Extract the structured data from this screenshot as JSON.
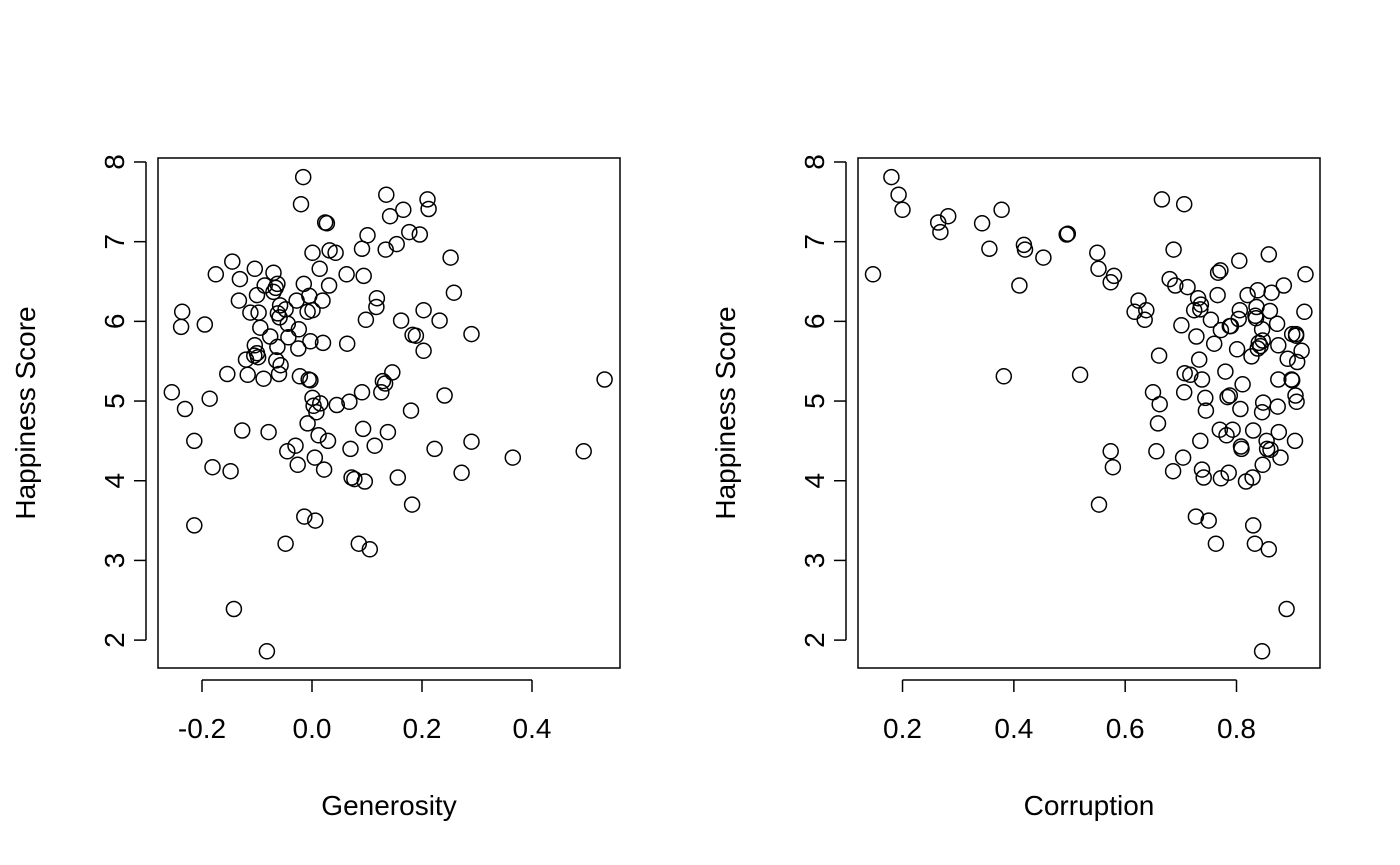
{
  "chart_data": [
    {
      "type": "scatter",
      "xlabel": "Generosity",
      "ylabel": "Happiness Score",
      "xlim": [
        -0.28,
        0.56
      ],
      "ylim": [
        1.65,
        8.05
      ],
      "xticks": [
        -0.2,
        0.0,
        0.2,
        0.4
      ],
      "xtick_labels": [
        "-0.2",
        "0.0",
        "0.2",
        "0.4"
      ],
      "yticks": [
        2,
        3,
        4,
        5,
        6,
        7,
        8
      ],
      "ytick_labels": [
        "2",
        "3",
        "4",
        "5",
        "6",
        "7",
        "8"
      ],
      "grid": false,
      "points": [
        [
          -0.016,
          7.81
        ],
        [
          -0.02,
          7.47
        ],
        [
          0.135,
          7.59
        ],
        [
          0.21,
          7.53
        ],
        [
          0.212,
          7.41
        ],
        [
          0.166,
          7.4
        ],
        [
          0.142,
          7.32
        ],
        [
          0.024,
          7.24
        ],
        [
          0.027,
          7.23
        ],
        [
          0.196,
          7.09
        ],
        [
          0.177,
          7.12
        ],
        [
          0.101,
          7.08
        ],
        [
          0.154,
          6.97
        ],
        [
          0.134,
          6.9
        ],
        [
          0.032,
          6.89
        ],
        [
          0.043,
          6.86
        ],
        [
          0.001,
          6.86
        ],
        [
          0.091,
          6.91
        ],
        [
          0.252,
          6.8
        ],
        [
          -0.145,
          6.75
        ],
        [
          -0.104,
          6.66
        ],
        [
          0.014,
          6.66
        ],
        [
          0.063,
          6.59
        ],
        [
          0.094,
          6.57
        ],
        [
          -0.175,
          6.59
        ],
        [
          -0.07,
          6.61
        ],
        [
          -0.131,
          6.53
        ],
        [
          -0.063,
          6.47
        ],
        [
          -0.015,
          6.47
        ],
        [
          0.031,
          6.45
        ],
        [
          -0.066,
          6.42
        ],
        [
          -0.086,
          6.45
        ],
        [
          -0.07,
          6.37
        ],
        [
          -0.1,
          6.33
        ],
        [
          0.258,
          6.36
        ],
        [
          -0.005,
          6.32
        ],
        [
          0.118,
          6.29
        ],
        [
          -0.133,
          6.26
        ],
        [
          -0.028,
          6.26
        ],
        [
          0.019,
          6.26
        ],
        [
          -0.058,
          6.2
        ],
        [
          -0.048,
          6.15
        ],
        [
          0.001,
          6.14
        ],
        [
          0.203,
          6.14
        ],
        [
          -0.008,
          6.12
        ],
        [
          -0.112,
          6.11
        ],
        [
          -0.097,
          6.11
        ],
        [
          -0.062,
          6.1
        ],
        [
          0.117,
          6.18
        ],
        [
          -0.236,
          6.12
        ],
        [
          -0.059,
          6.05
        ],
        [
          0.098,
          6.02
        ],
        [
          0.232,
          6.01
        ],
        [
          0.162,
          6.01
        ],
        [
          -0.044,
          5.97
        ],
        [
          -0.195,
          5.96
        ],
        [
          -0.238,
          5.93
        ],
        [
          -0.094,
          5.92
        ],
        [
          -0.024,
          5.9
        ],
        [
          0.183,
          5.83
        ],
        [
          0.29,
          5.84
        ],
        [
          0.189,
          5.82
        ],
        [
          -0.076,
          5.81
        ],
        [
          -0.043,
          5.8
        ],
        [
          -0.003,
          5.75
        ],
        [
          0.02,
          5.73
        ],
        [
          0.064,
          5.72
        ],
        [
          -0.104,
          5.7
        ],
        [
          -0.063,
          5.68
        ],
        [
          -0.025,
          5.66
        ],
        [
          0.203,
          5.63
        ],
        [
          -0.1,
          5.6
        ],
        [
          -0.105,
          5.57
        ],
        [
          -0.098,
          5.55
        ],
        [
          -0.12,
          5.52
        ],
        [
          -0.065,
          5.51
        ],
        [
          -0.057,
          5.45
        ],
        [
          0.146,
          5.36
        ],
        [
          -0.154,
          5.34
        ],
        [
          -0.117,
          5.33
        ],
        [
          -0.06,
          5.34
        ],
        [
          -0.022,
          5.31
        ],
        [
          -0.088,
          5.28
        ],
        [
          -0.006,
          5.27
        ],
        [
          -0.003,
          5.26
        ],
        [
          0.532,
          5.27
        ],
        [
          0.129,
          5.25
        ],
        [
          0.133,
          5.22
        ],
        [
          0.126,
          5.11
        ],
        [
          0.091,
          5.11
        ],
        [
          -0.255,
          5.11
        ],
        [
          0.241,
          5.07
        ],
        [
          0.001,
          5.04
        ],
        [
          0.015,
          4.97
        ],
        [
          0.045,
          4.95
        ],
        [
          0.003,
          4.94
        ],
        [
          -0.231,
          4.9
        ],
        [
          0.18,
          4.88
        ],
        [
          0.008,
          4.86
        ],
        [
          -0.186,
          5.03
        ],
        [
          0.093,
          4.65
        ],
        [
          0.138,
          4.61
        ],
        [
          -0.127,
          4.63
        ],
        [
          -0.079,
          4.61
        ],
        [
          0.012,
          4.57
        ],
        [
          0.029,
          4.5
        ],
        [
          -0.214,
          4.5
        ],
        [
          0.29,
          4.49
        ],
        [
          0.114,
          4.44
        ],
        [
          -0.03,
          4.44
        ],
        [
          -0.045,
          4.37
        ],
        [
          0.223,
          4.4
        ],
        [
          0.07,
          4.4
        ],
        [
          0.494,
          4.37
        ],
        [
          0.365,
          4.29
        ],
        [
          0.005,
          4.29
        ],
        [
          0.022,
          4.14
        ],
        [
          -0.026,
          4.2
        ],
        [
          -0.181,
          4.17
        ],
        [
          -0.148,
          4.12
        ],
        [
          0.272,
          4.1
        ],
        [
          0.156,
          4.04
        ],
        [
          0.072,
          4.04
        ],
        [
          0.077,
          4.02
        ],
        [
          0.096,
          3.99
        ],
        [
          0.182,
          3.7
        ],
        [
          -0.014,
          3.55
        ],
        [
          0.006,
          3.5
        ],
        [
          -0.214,
          3.44
        ],
        [
          -0.048,
          3.21
        ],
        [
          0.085,
          3.21
        ],
        [
          0.105,
          3.14
        ],
        [
          -0.142,
          2.39
        ],
        [
          -0.082,
          1.86
        ],
        [
          -0.008,
          4.72
        ],
        [
          0.068,
          4.99
        ]
      ]
    },
    {
      "type": "scatter",
      "xlabel": "Corruption",
      "ylabel": "Happiness Score",
      "xlim": [
        0.12,
        0.95
      ],
      "ylim": [
        1.65,
        8.05
      ],
      "xticks": [
        0.2,
        0.4,
        0.6,
        0.8
      ],
      "xtick_labels": [
        "0.2",
        "0.4",
        "0.6",
        "0.8"
      ],
      "yticks": [
        2,
        3,
        4,
        5,
        6,
        7,
        8
      ],
      "ytick_labels": [
        "2",
        "3",
        "4",
        "5",
        "6",
        "7",
        "8"
      ],
      "grid": false,
      "points": [
        [
          0.18,
          7.81
        ],
        [
          0.193,
          7.59
        ],
        [
          0.2,
          7.4
        ],
        [
          0.666,
          7.53
        ],
        [
          0.706,
          7.47
        ],
        [
          0.264,
          7.24
        ],
        [
          0.282,
          7.32
        ],
        [
          0.268,
          7.12
        ],
        [
          0.343,
          7.23
        ],
        [
          0.378,
          7.4
        ],
        [
          0.495,
          7.09
        ],
        [
          0.497,
          7.1
        ],
        [
          0.418,
          6.96
        ],
        [
          0.42,
          6.9
        ],
        [
          0.356,
          6.91
        ],
        [
          0.453,
          6.8
        ],
        [
          0.55,
          6.86
        ],
        [
          0.687,
          6.9
        ],
        [
          0.147,
          6.59
        ],
        [
          0.552,
          6.66
        ],
        [
          0.805,
          6.76
        ],
        [
          0.858,
          6.84
        ],
        [
          0.771,
          6.64
        ],
        [
          0.767,
          6.61
        ],
        [
          0.924,
          6.59
        ],
        [
          0.58,
          6.57
        ],
        [
          0.574,
          6.49
        ],
        [
          0.68,
          6.53
        ],
        [
          0.69,
          6.45
        ],
        [
          0.41,
          6.45
        ],
        [
          0.712,
          6.43
        ],
        [
          0.838,
          6.39
        ],
        [
          0.863,
          6.36
        ],
        [
          0.885,
          6.45
        ],
        [
          0.766,
          6.33
        ],
        [
          0.82,
          6.33
        ],
        [
          0.731,
          6.29
        ],
        [
          0.624,
          6.26
        ],
        [
          0.617,
          6.12
        ],
        [
          0.638,
          6.14
        ],
        [
          0.736,
          6.21
        ],
        [
          0.735,
          6.15
        ],
        [
          0.806,
          6.14
        ],
        [
          0.724,
          6.14
        ],
        [
          0.836,
          6.18
        ],
        [
          0.86,
          6.13
        ],
        [
          0.922,
          6.12
        ],
        [
          0.834,
          6.07
        ],
        [
          0.835,
          6.04
        ],
        [
          0.804,
          6.03
        ],
        [
          0.635,
          6.02
        ],
        [
          0.754,
          6.02
        ],
        [
          0.873,
          5.97
        ],
        [
          0.788,
          5.94
        ],
        [
          0.701,
          5.95
        ],
        [
          0.846,
          5.9
        ],
        [
          0.772,
          5.89
        ],
        [
          0.728,
          5.81
        ],
        [
          0.9,
          5.84
        ],
        [
          0.907,
          5.84
        ],
        [
          0.907,
          5.82
        ],
        [
          0.847,
          5.76
        ],
        [
          0.84,
          5.73
        ],
        [
          0.76,
          5.72
        ],
        [
          0.843,
          5.69
        ],
        [
          0.875,
          5.7
        ],
        [
          0.838,
          5.66
        ],
        [
          0.801,
          5.65
        ],
        [
          0.917,
          5.63
        ],
        [
          0.827,
          5.56
        ],
        [
          0.661,
          5.57
        ],
        [
          0.892,
          5.53
        ],
        [
          0.733,
          5.52
        ],
        [
          0.909,
          5.49
        ],
        [
          0.78,
          5.37
        ],
        [
          0.707,
          5.35
        ],
        [
          0.717,
          5.33
        ],
        [
          0.519,
          5.33
        ],
        [
          0.382,
          5.31
        ],
        [
          0.738,
          5.27
        ],
        [
          0.875,
          5.27
        ],
        [
          0.899,
          5.27
        ],
        [
          0.9,
          5.26
        ],
        [
          0.811,
          5.21
        ],
        [
          0.65,
          5.11
        ],
        [
          0.706,
          5.11
        ],
        [
          0.784,
          5.05
        ],
        [
          0.788,
          5.07
        ],
        [
          0.744,
          5.04
        ],
        [
          0.906,
          5.07
        ],
        [
          0.908,
          4.99
        ],
        [
          0.662,
          4.96
        ],
        [
          0.848,
          4.98
        ],
        [
          0.874,
          4.93
        ],
        [
          0.807,
          4.9
        ],
        [
          0.745,
          4.88
        ],
        [
          0.846,
          4.86
        ],
        [
          0.659,
          4.72
        ],
        [
          0.77,
          4.64
        ],
        [
          0.793,
          4.64
        ],
        [
          0.83,
          4.63
        ],
        [
          0.876,
          4.61
        ],
        [
          0.782,
          4.57
        ],
        [
          0.735,
          4.5
        ],
        [
          0.905,
          4.5
        ],
        [
          0.854,
          4.5
        ],
        [
          0.808,
          4.43
        ],
        [
          0.855,
          4.4
        ],
        [
          0.809,
          4.4
        ],
        [
          0.861,
          4.39
        ],
        [
          0.656,
          4.37
        ],
        [
          0.574,
          4.37
        ],
        [
          0.704,
          4.29
        ],
        [
          0.879,
          4.29
        ],
        [
          0.847,
          4.2
        ],
        [
          0.578,
          4.17
        ],
        [
          0.738,
          4.14
        ],
        [
          0.686,
          4.12
        ],
        [
          0.786,
          4.1
        ],
        [
          0.741,
          4.04
        ],
        [
          0.829,
          4.04
        ],
        [
          0.772,
          4.03
        ],
        [
          0.817,
          3.99
        ],
        [
          0.553,
          3.7
        ],
        [
          0.727,
          3.55
        ],
        [
          0.75,
          3.5
        ],
        [
          0.83,
          3.44
        ],
        [
          0.763,
          3.21
        ],
        [
          0.833,
          3.21
        ],
        [
          0.858,
          3.14
        ],
        [
          0.89,
          2.39
        ],
        [
          0.846,
          1.86
        ],
        [
          0.79,
          5.94
        ]
      ]
    }
  ]
}
